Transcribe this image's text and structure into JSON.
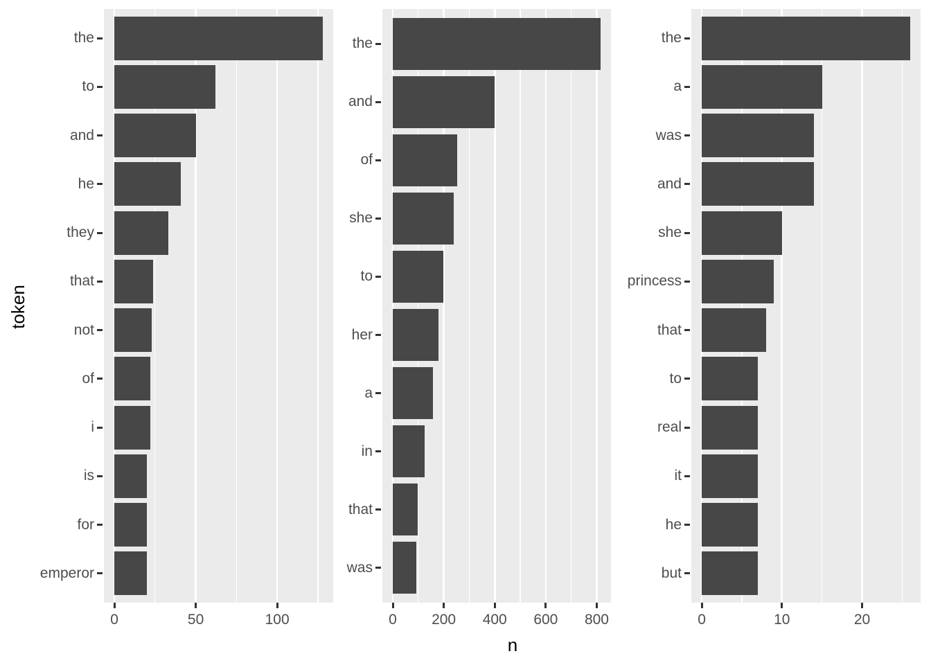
{
  "chart_data": {
    "type": "bar",
    "orientation": "horizontal",
    "title": "",
    "xlabel": "n",
    "ylabel": "token",
    "legend": "none",
    "grid": "vertical-major-and-minor",
    "facets": [
      {
        "tokens": [
          "the",
          "to",
          "and",
          "he",
          "they",
          "that",
          "not",
          "of",
          "i",
          "is",
          "for",
          "emperor"
        ],
        "values": [
          128,
          62,
          50,
          41,
          33,
          24,
          23,
          22,
          22,
          20,
          20,
          20
        ],
        "x_ticks": [
          0,
          50,
          100
        ],
        "x_minor_ticks": [
          25,
          75,
          125
        ],
        "x_max": 128,
        "x_range_expanded": [
          -6.4,
          134.4
        ]
      },
      {
        "tokens": [
          "the",
          "and",
          "of",
          "she",
          "to",
          "her",
          "a",
          "in",
          "that",
          "was"
        ],
        "values": [
          815,
          400,
          252,
          238,
          198,
          180,
          157,
          125,
          97,
          93
        ],
        "x_ticks": [
          0,
          200,
          400,
          600,
          800
        ],
        "x_minor_ticks": [
          100,
          300,
          500,
          700
        ],
        "x_max": 815,
        "x_range_expanded": [
          -40.75,
          855.75
        ]
      },
      {
        "tokens": [
          "the",
          "a",
          "was",
          "and",
          "she",
          "princess",
          "that",
          "to",
          "real",
          "it",
          "he",
          "but"
        ],
        "values": [
          26,
          15,
          14,
          14,
          10,
          9,
          8,
          7,
          7,
          7,
          7,
          7
        ],
        "x_ticks": [
          0,
          10,
          20
        ],
        "x_minor_ticks": [
          5,
          15,
          25
        ],
        "x_max": 26,
        "x_range_expanded": [
          -1.3,
          27.3
        ]
      }
    ],
    "colors": {
      "bar_fill": "#474747",
      "panel_background": "#EBEBEB",
      "gridline": "#FFFFFF",
      "tick_label": "#4D4D4D",
      "axis_title": "#000000",
      "tick_mark": "#333333",
      "page_background": "#FFFFFF"
    }
  }
}
